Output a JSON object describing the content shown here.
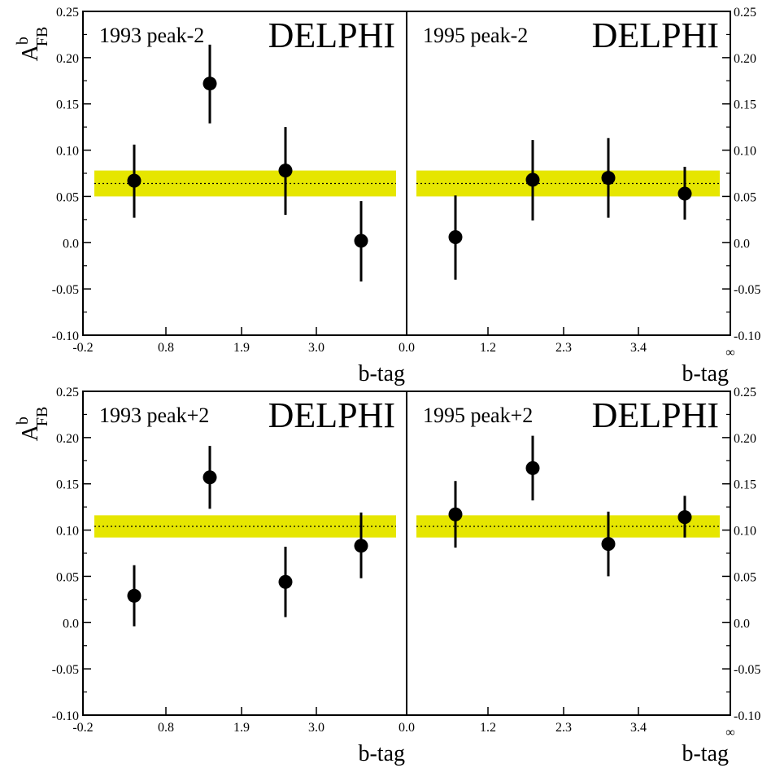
{
  "colors": {
    "band": "#e6e600",
    "marker": "#000000",
    "frame": "#000000"
  },
  "y_axis_label": {
    "main": "A",
    "sup": "b",
    "sub": "FB"
  },
  "y_ticks": [
    "-0.10",
    "-0.05",
    "0.0",
    "0.05",
    "0.10",
    "0.15",
    "0.20",
    "0.25"
  ],
  "x_ticks_1993": [
    "-0.2",
    "0.8",
    "1.9",
    "3.0"
  ],
  "x_ticks_1995": [
    "0.0",
    "1.2",
    "2.3",
    "3.4",
    "∞"
  ],
  "chart_data": [
    {
      "type": "scatter",
      "label": "1993 peak-2",
      "brand": "DELPHI",
      "xlabel": "b-tag",
      "ylim": [
        -0.1,
        0.25
      ],
      "reference": {
        "value": 0.064,
        "band": [
          0.05,
          0.078
        ]
      },
      "points": [
        {
          "x": 1,
          "y": 0.067,
          "err_low": 0.04,
          "err_high": 0.039
        },
        {
          "x": 2,
          "y": 0.172,
          "err_low": 0.043,
          "err_high": 0.042
        },
        {
          "x": 3,
          "y": 0.078,
          "err_low": 0.048,
          "err_high": 0.047
        },
        {
          "x": 4,
          "y": 0.002,
          "err_low": 0.044,
          "err_high": 0.043
        }
      ]
    },
    {
      "type": "scatter",
      "label": "1995 peak-2",
      "brand": "DELPHI",
      "xlabel": "b-tag",
      "ylim": [
        -0.1,
        0.25
      ],
      "reference": {
        "value": 0.064,
        "band": [
          0.05,
          0.078
        ]
      },
      "points": [
        {
          "x": 1,
          "y": 0.006,
          "err_low": 0.046,
          "err_high": 0.045
        },
        {
          "x": 2,
          "y": 0.068,
          "err_low": 0.044,
          "err_high": 0.043
        },
        {
          "x": 3,
          "y": 0.07,
          "err_low": 0.043,
          "err_high": 0.043
        },
        {
          "x": 4,
          "y": 0.053,
          "err_low": 0.028,
          "err_high": 0.029
        }
      ]
    },
    {
      "type": "scatter",
      "label": "1993 peak+2",
      "brand": "DELPHI",
      "xlabel": "b-tag",
      "ylim": [
        -0.1,
        0.25
      ],
      "reference": {
        "value": 0.104,
        "band": [
          0.092,
          0.116
        ]
      },
      "points": [
        {
          "x": 1,
          "y": 0.029,
          "err_low": 0.033,
          "err_high": 0.033
        },
        {
          "x": 2,
          "y": 0.157,
          "err_low": 0.034,
          "err_high": 0.034
        },
        {
          "x": 3,
          "y": 0.044,
          "err_low": 0.038,
          "err_high": 0.038
        },
        {
          "x": 4,
          "y": 0.083,
          "err_low": 0.035,
          "err_high": 0.036
        }
      ]
    },
    {
      "type": "scatter",
      "label": "1995 peak+2",
      "brand": "DELPHI",
      "xlabel": "b-tag",
      "ylim": [
        -0.1,
        0.25
      ],
      "reference": {
        "value": 0.104,
        "band": [
          0.092,
          0.116
        ]
      },
      "points": [
        {
          "x": 1,
          "y": 0.117,
          "err_low": 0.036,
          "err_high": 0.036
        },
        {
          "x": 2,
          "y": 0.167,
          "err_low": 0.035,
          "err_high": 0.035
        },
        {
          "x": 3,
          "y": 0.085,
          "err_low": 0.035,
          "err_high": 0.035
        },
        {
          "x": 4,
          "y": 0.114,
          "err_low": 0.022,
          "err_high": 0.023
        }
      ]
    }
  ]
}
